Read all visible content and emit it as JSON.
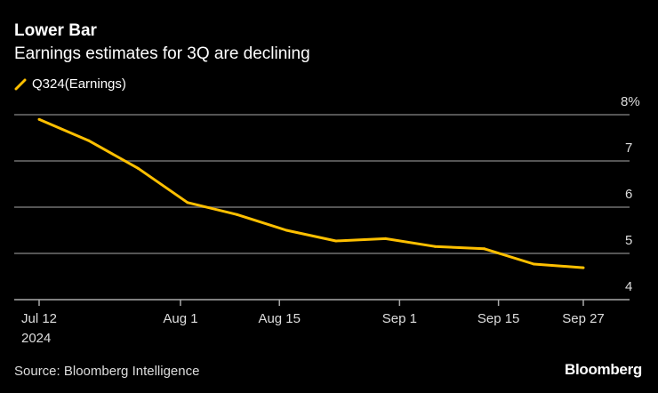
{
  "header": {
    "title": "Lower Bar",
    "subtitle": "Earnings estimates for 3Q are declining"
  },
  "footer": {
    "source": "Source: Bloomberg Intelligence",
    "logo": "Bloomberg"
  },
  "colors": {
    "line": "#ffc000",
    "grid": "#555555",
    "background": "#000000"
  },
  "chart_data": {
    "type": "line",
    "title": "Lower Bar",
    "subtitle": "Earnings estimates for 3Q are declining",
    "legend_position": "top-left",
    "grid": true,
    "y_axis_side": "right",
    "ylim": [
      4,
      8
    ],
    "y_ticks": [
      {
        "value": 8,
        "label": "8%"
      },
      {
        "value": 7,
        "label": "7"
      },
      {
        "value": 6,
        "label": "6"
      },
      {
        "value": 5,
        "label": "5"
      },
      {
        "value": 4,
        "label": "4"
      }
    ],
    "x_ticks": [
      {
        "date": "2024-07-12",
        "label": "Jul 12",
        "sublabel": "2024"
      },
      {
        "date": "2024-08-01",
        "label": "Aug 1"
      },
      {
        "date": "2024-08-15",
        "label": "Aug 15"
      },
      {
        "date": "2024-09-01",
        "label": "Sep 1"
      },
      {
        "date": "2024-09-15",
        "label": "Sep 15"
      },
      {
        "date": "2024-09-27",
        "label": "Sep 27"
      }
    ],
    "xlim": [
      "2024-07-12",
      "2024-09-27"
    ],
    "series": [
      {
        "name": "Q324(Earnings)",
        "color": "#ffc000",
        "x": [
          "2024-07-12",
          "2024-07-19",
          "2024-07-26",
          "2024-08-02",
          "2024-08-09",
          "2024-08-16",
          "2024-08-23",
          "2024-08-30",
          "2024-09-06",
          "2024-09-13",
          "2024-09-20",
          "2024-09-27"
        ],
        "y": [
          7.9,
          7.44,
          6.84,
          6.1,
          5.84,
          5.5,
          5.27,
          5.32,
          5.15,
          5.1,
          4.77,
          4.69
        ]
      }
    ]
  }
}
